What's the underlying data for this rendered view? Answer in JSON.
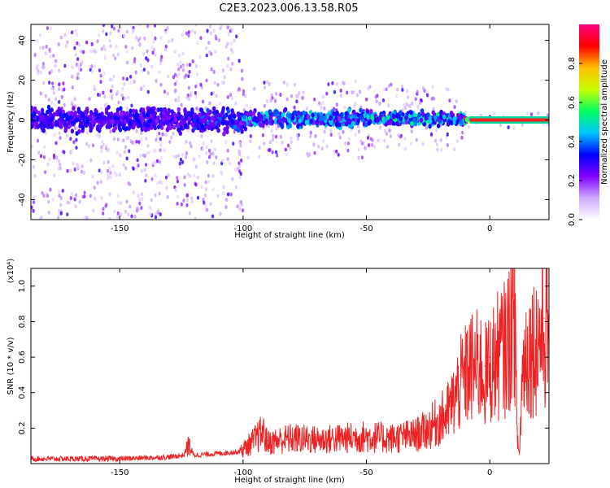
{
  "title": "C2E3.2023.006.13.58.R05",
  "chart_data": [
    {
      "type": "heatmap",
      "xlabel": "Height of straight line (km)",
      "ylabel": "Frequency (Hz)",
      "xlim": [
        -186,
        24
      ],
      "ylim": [
        -50,
        48
      ],
      "xticks": [
        -150,
        -100,
        -50,
        0
      ],
      "yticks": [
        -40,
        -20,
        0,
        20,
        40
      ],
      "grid": false,
      "colorbar": {
        "label": "Normalized spectral amplitude",
        "range": [
          0.0,
          1.0
        ],
        "ticks": [
          0.0,
          0.2,
          0.4,
          0.6,
          0.8
        ],
        "colormap": [
          "#ffffff",
          "#cfa8ff",
          "#8000ff",
          "#0000ff",
          "#00c8ff",
          "#00ff60",
          "#c8ff00",
          "#ffc000",
          "#ff0000",
          "#ff0080"
        ]
      },
      "centerline": {
        "frequency_hz": 0,
        "color": "#ff2020",
        "x_range": [
          -8,
          24
        ]
      },
      "bands": [
        {
          "x_from": -186,
          "x_to": -120,
          "scatter_freq_hz": [
            -50,
            48
          ],
          "core_freq_hz": [
            -8,
            8
          ],
          "peak_amplitude": 0.35
        },
        {
          "x_from": -120,
          "x_to": -100,
          "scatter_freq_hz": [
            -50,
            48
          ],
          "core_freq_hz": [
            -8,
            8
          ],
          "peak_amplitude": 0.4
        },
        {
          "x_from": -100,
          "x_to": -50,
          "scatter_freq_hz": [
            -20,
            20
          ],
          "core_freq_hz": [
            -5,
            6
          ],
          "peak_amplitude": 0.5
        },
        {
          "x_from": -50,
          "x_to": -10,
          "scatter_freq_hz": [
            -15,
            18
          ],
          "core_freq_hz": [
            -4,
            5
          ],
          "peak_amplitude": 0.55
        },
        {
          "x_from": -10,
          "x_to": 24,
          "scatter_freq_hz": [
            -4,
            4
          ],
          "core_freq_hz": [
            -1,
            1
          ],
          "peak_amplitude": 1.0
        }
      ]
    },
    {
      "type": "line",
      "xlabel": "Height of straight line (km)",
      "ylabel": "SNR (10 * v/v)",
      "y_multiplier": "(x10⁴)",
      "xlim": [
        -186,
        24
      ],
      "ylim": [
        0,
        1.1
      ],
      "xticks": [
        -150,
        -100,
        -50,
        0
      ],
      "yticks": [
        0.2,
        0.4,
        0.6,
        0.8,
        1.0
      ],
      "grid": false,
      "series": [
        {
          "color": "#ee2222",
          "x": [
            -186,
            -170,
            -150,
            -130,
            -124,
            -122,
            -120,
            -110,
            -102,
            -100,
            -96,
            -92,
            -90,
            -85,
            -80,
            -70,
            -60,
            -50,
            -40,
            -30,
            -25,
            -20,
            -18,
            -16,
            -14,
            -12,
            -10,
            -8,
            -6,
            -4,
            -2,
            0,
            2,
            4,
            6,
            8,
            9,
            10,
            11,
            12,
            13,
            14,
            16,
            18,
            20,
            22,
            24
          ],
          "y": [
            0.03,
            0.03,
            0.03,
            0.04,
            0.05,
            0.12,
            0.05,
            0.06,
            0.07,
            0.09,
            0.14,
            0.2,
            0.13,
            0.15,
            0.16,
            0.15,
            0.16,
            0.17,
            0.16,
            0.18,
            0.22,
            0.28,
            0.3,
            0.35,
            0.42,
            0.5,
            0.55,
            0.6,
            0.6,
            0.62,
            0.55,
            0.6,
            0.65,
            0.7,
            0.72,
            0.8,
            0.95,
            1.08,
            0.2,
            0.05,
            0.5,
            0.68,
            0.72,
            0.75,
            0.8,
            0.82,
            0.84
          ]
        }
      ]
    }
  ]
}
